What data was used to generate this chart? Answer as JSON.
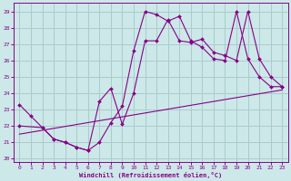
{
  "xlabel": "Windchill (Refroidissement éolien,°C)",
  "xlim": [
    -0.5,
    23.5
  ],
  "ylim": [
    19.8,
    29.5
  ],
  "yticks": [
    20,
    21,
    22,
    23,
    24,
    25,
    26,
    27,
    28,
    29
  ],
  "xticks": [
    0,
    1,
    2,
    3,
    4,
    5,
    6,
    7,
    8,
    9,
    10,
    11,
    12,
    13,
    14,
    15,
    16,
    17,
    18,
    19,
    20,
    21,
    22,
    23
  ],
  "bg_color": "#cce8e8",
  "grid_color": "#aacccc",
  "line_color": "#880088",
  "series": [
    {
      "x": [
        0,
        1,
        2,
        3,
        4,
        5,
        6,
        7,
        8,
        9,
        10,
        11,
        12,
        13,
        14,
        15,
        16,
        17,
        18,
        19,
        20,
        21,
        22,
        23
      ],
      "y": [
        23.3,
        22.6,
        21.9,
        21.2,
        21.0,
        20.7,
        20.5,
        21.0,
        22.2,
        23.2,
        26.6,
        29.0,
        28.8,
        28.4,
        28.7,
        27.2,
        26.8,
        26.1,
        26.0,
        29.0,
        26.1,
        25.0,
        24.4,
        24.4
      ]
    },
    {
      "x": [
        0,
        2,
        3,
        4,
        5,
        6,
        7,
        8,
        9,
        10,
        11,
        12,
        13,
        14,
        15,
        16,
        17,
        18,
        19,
        20,
        21,
        22,
        23
      ],
      "y": [
        22.0,
        21.9,
        21.2,
        21.0,
        20.7,
        20.5,
        23.5,
        24.3,
        22.1,
        24.0,
        27.2,
        27.2,
        28.5,
        27.2,
        27.1,
        27.3,
        26.5,
        26.3,
        26.0,
        29.0,
        26.1,
        25.0,
        24.4
      ]
    },
    {
      "x": [
        0,
        23
      ],
      "y": [
        21.5,
        24.2
      ]
    }
  ]
}
